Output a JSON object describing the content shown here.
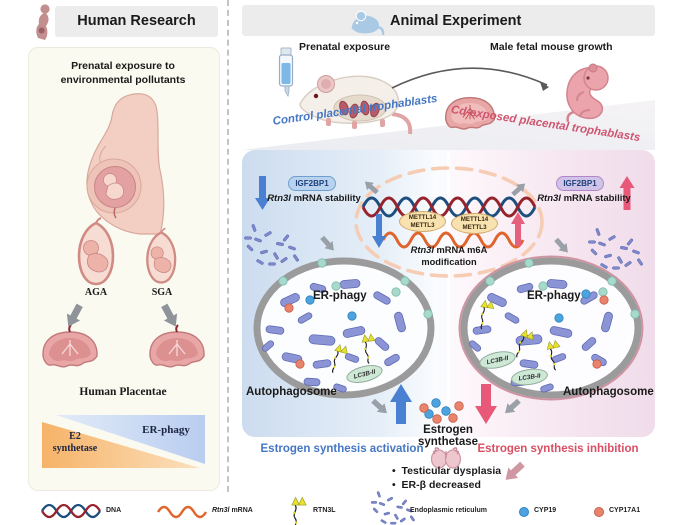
{
  "human": {
    "header": "Human Research",
    "exposure_line1": "Prenatal exposure to",
    "exposure_line2": "environmental pollutants",
    "aga": "AGA",
    "sga": "SGA",
    "placentae": "Human Placentae",
    "e2_line1": "E2",
    "e2_line2": "synthetase",
    "er_phagy": "ER-phagy"
  },
  "animal": {
    "header": "Animal Experiment",
    "prenatal": "Prenatal exposure",
    "growth": "Male fetal mouse growth",
    "control": "Control placental trophablasts",
    "cd_exposed": "Cd-exposed placental trophablasts"
  },
  "mechanism": {
    "igf2bp1": "IGF2BP1",
    "gene": "Rtn3l",
    "stability_suffix": " mRNA stability",
    "mettl14": "METTL14",
    "mettl3": "METTL3",
    "m6a_suffix": " mRNA m6A",
    "m6a_line2": "modification",
    "er_phagy": "ER-phagy",
    "autophagosome": "Autophagosome",
    "lc3b": "LC3B-II",
    "estrogen_synthetase": "Estrogen synthetase",
    "activation": "Estrogen synthesis activation",
    "inhibition": "Estrogen synthesis inhibition",
    "bullet": "•",
    "outcome1": "Testicular dysplasia",
    "outcome2": "ER-β decreased"
  },
  "legend": {
    "dna": "DNA",
    "gene": "Rtn3l",
    "mrna_suffix": " mRNA",
    "rtn3l": "RTN3L",
    "er": "Endoplasmic reticulum",
    "cyp19": "CYP19",
    "cyp17a1": "CYP17A1"
  },
  "colors": {
    "blue_accent": "#4577c4",
    "pink_accent": "#cf5570",
    "red_accent": "#d94f63",
    "arrow_blue": "#4a80d2",
    "arrow_pink": "#e85878",
    "teal_dot": "#a8dacc",
    "cyp19_dot": "#4da3dd",
    "cyp17a1_dot": "#e8836c"
  }
}
